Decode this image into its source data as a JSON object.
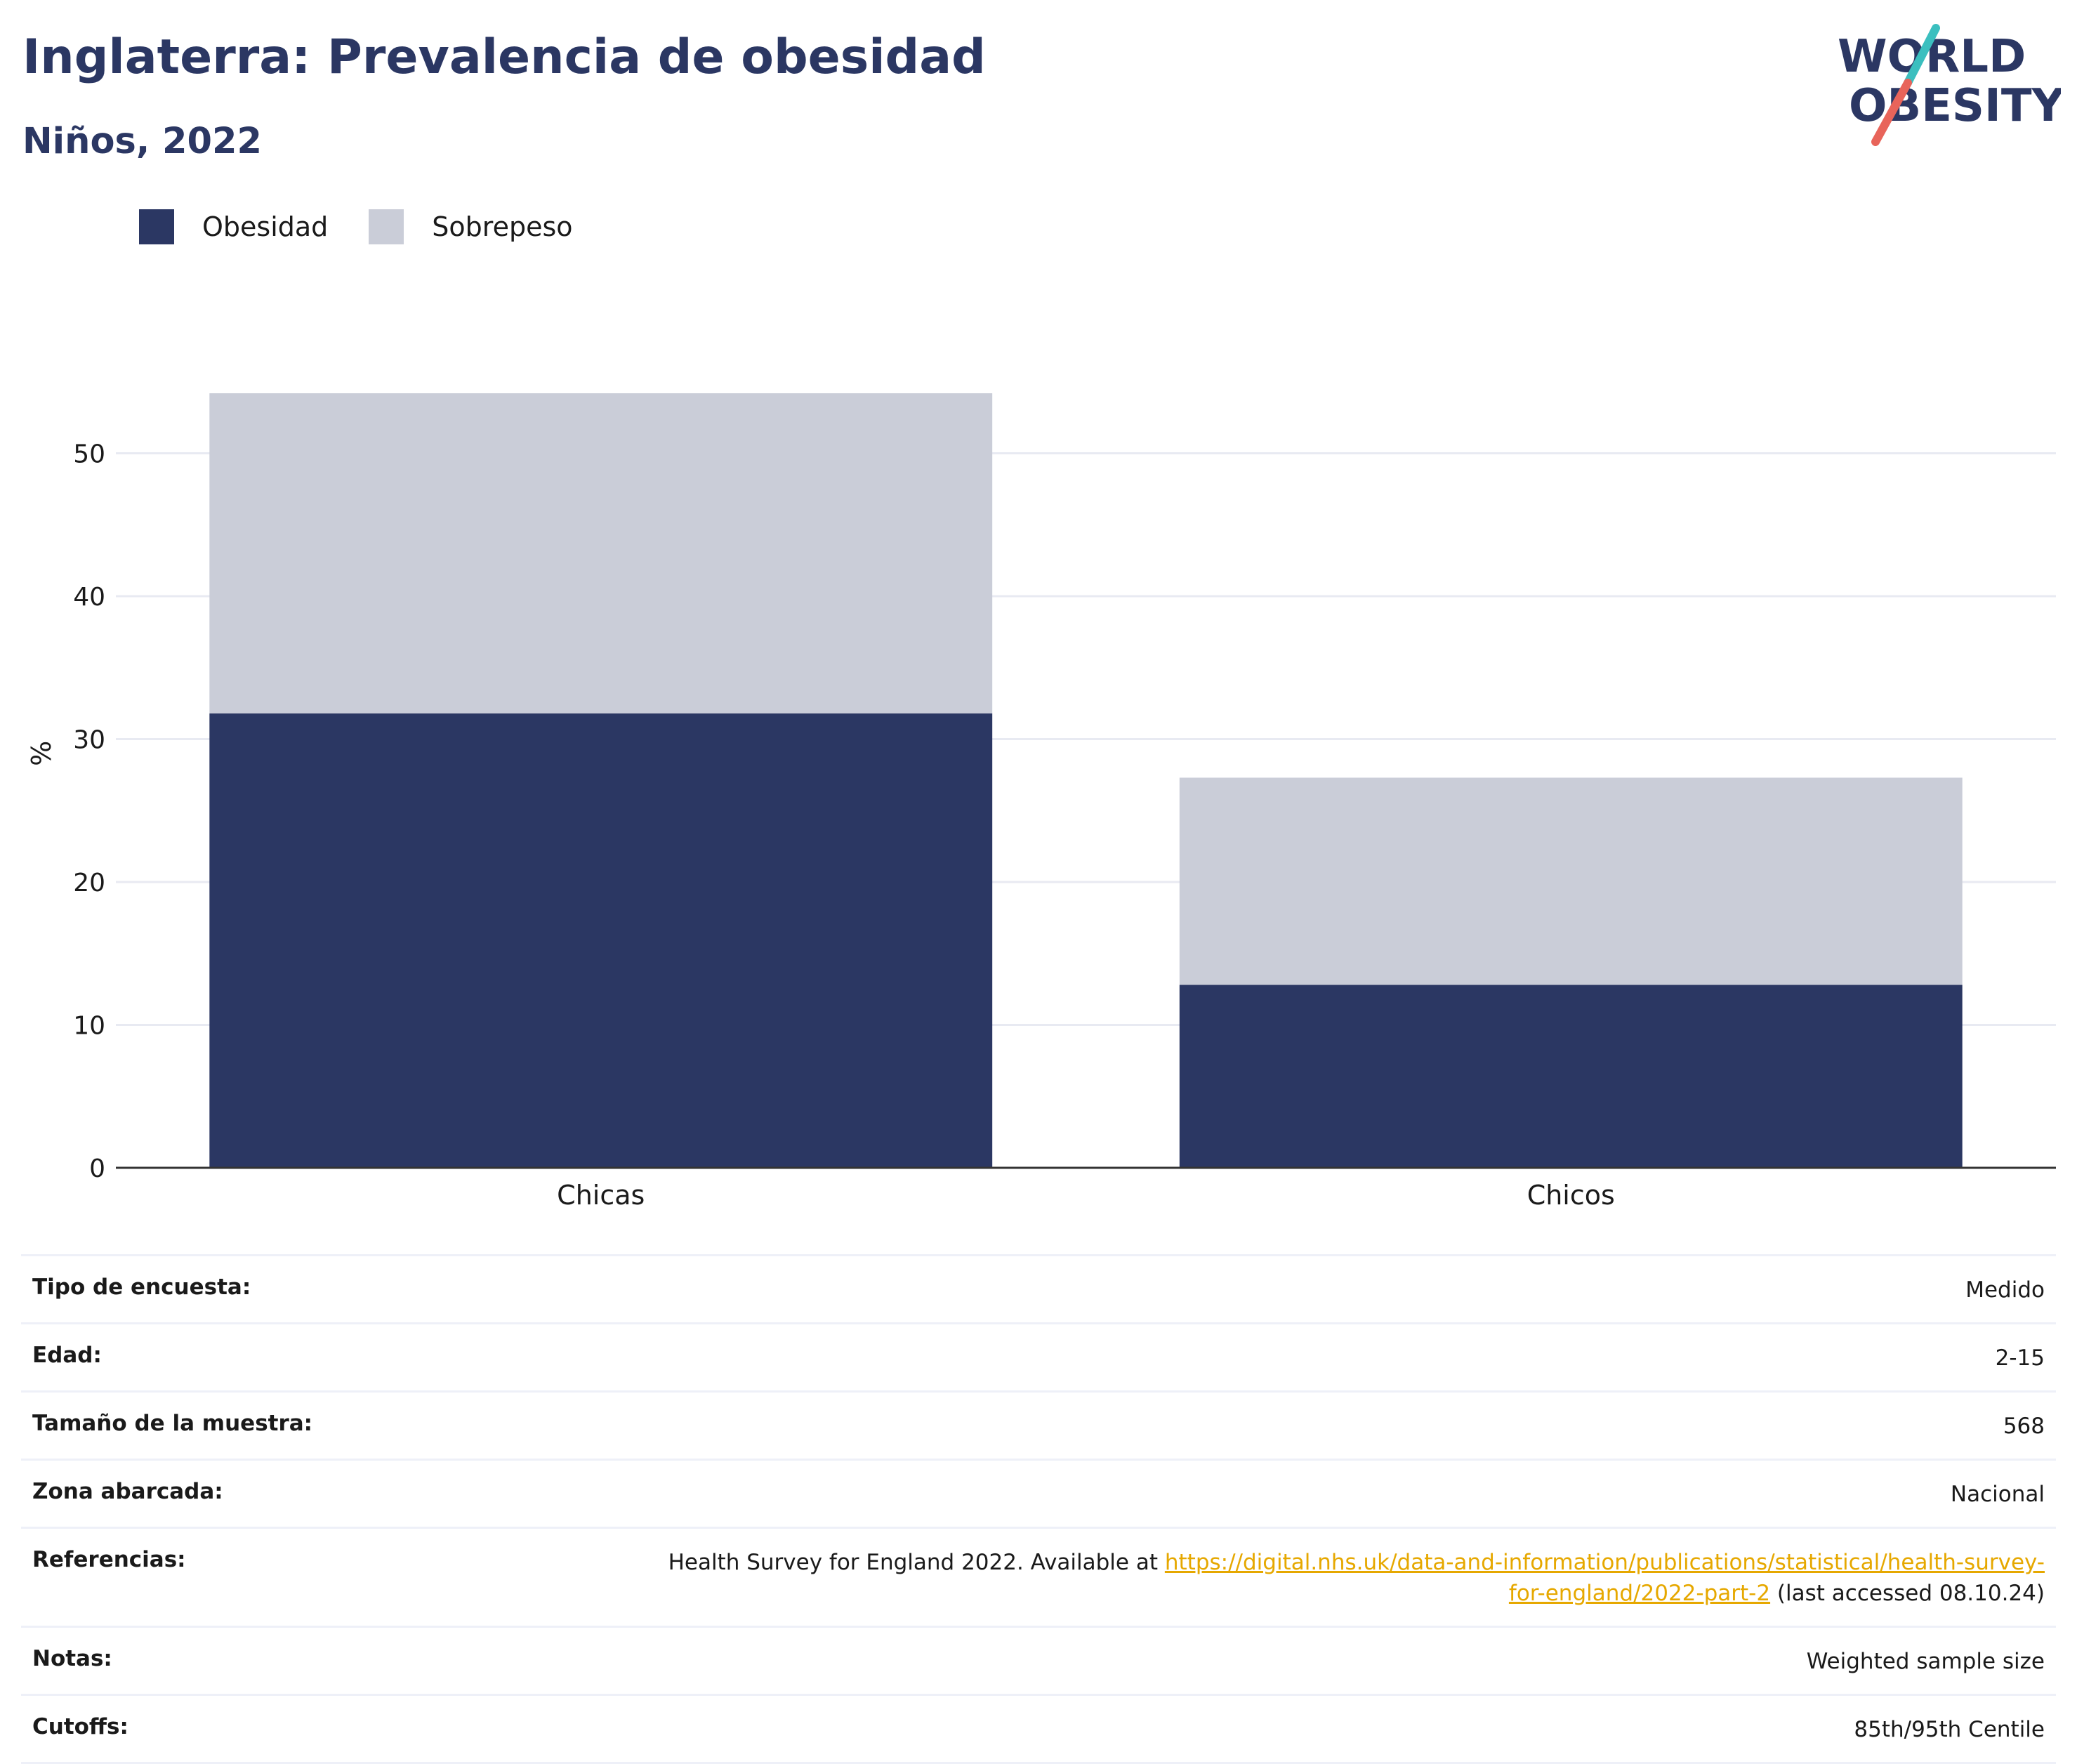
{
  "header": {
    "title": "Inglaterra: Prevalencia de obesidad",
    "subtitle": "Niños, 2022"
  },
  "logo": {
    "line1": "WORLD",
    "line2": "OBESITY",
    "colors": {
      "navy": "#2b3763",
      "teal": "#3bbfbf",
      "coral": "#e8645a"
    }
  },
  "colors": {
    "obesity": "#2b3763",
    "overweight": "#cacdd8",
    "grid": "#e8eaf2",
    "axis": "#333333",
    "link": "#e6a800"
  },
  "chart_data": {
    "type": "bar",
    "stacked": true,
    "categories": [
      "Chicas",
      "Chicos"
    ],
    "series": [
      {
        "name": "Obesidad",
        "values": [
          31.8,
          12.8
        ],
        "color": "#2b3763"
      },
      {
        "name": "Sobrepeso",
        "values": [
          22.4,
          14.5
        ],
        "color": "#cacdd8"
      }
    ],
    "ylabel": "%",
    "xlabel": "",
    "ylim": [
      0,
      58
    ],
    "yticks": [
      0,
      10,
      20,
      30,
      40,
      50
    ],
    "grid": true,
    "legend_position": "top-left"
  },
  "meta": {
    "rows": [
      {
        "label": "Tipo de encuesta:",
        "value": "Medido"
      },
      {
        "label": "Edad:",
        "value": "2-15"
      },
      {
        "label": "Tamaño de la muestra:",
        "value": "568"
      },
      {
        "label": "Zona abarcada:",
        "value": "Nacional"
      },
      {
        "label": "Referencias:",
        "value": "Health Survey for England 2022. Available at ",
        "link": "https://digital.nhs.uk/data-and-information/publications/statistical/health-survey-for-england/2022-part-2",
        "suffix": " (last accessed 08.10.24)"
      },
      {
        "label": "Notas:",
        "value": "Weighted sample size"
      },
      {
        "label": "Cutoffs:",
        "value": "85th/95th Centile"
      }
    ]
  }
}
